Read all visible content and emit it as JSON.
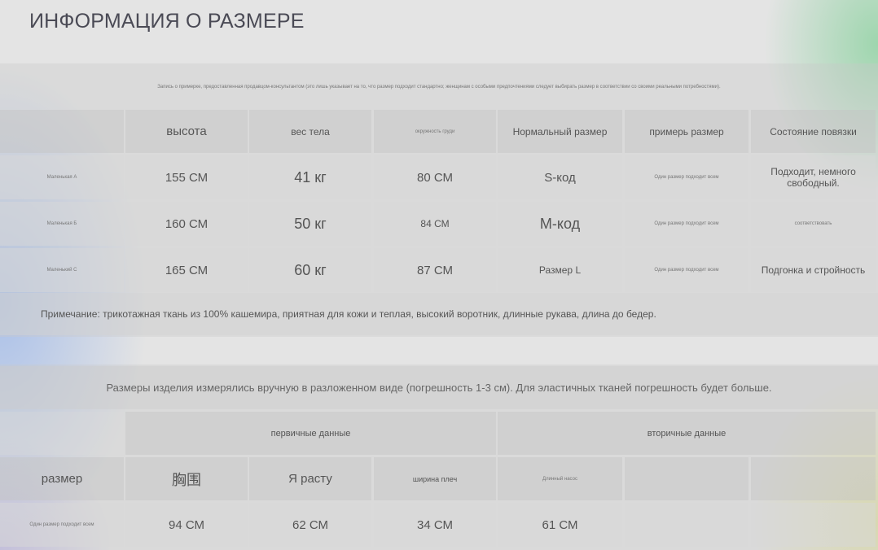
{
  "title": "ИНФОРМАЦИЯ О РАЗМЕРЕ",
  "table1": {
    "note_top": "Запись о примерке, предоставленная продавцом-консультантом (это лишь указывает на то, что размер подходит стандартно; женщинам с особыми предпочтениями следует выбирать размер в соответствии со своими реальными потребностями).",
    "headers": [
      "высота",
      "вес тела",
      "окружность груди",
      "Нормальный размер",
      "примерь размер",
      "Состояние повязки"
    ],
    "rows": [
      {
        "label": "Маленькая А",
        "cells": [
          "155 СМ",
          "41 кг",
          "80 СМ",
          "S-код",
          "Один размер подходит всем",
          "Подходит, немного свободный."
        ]
      },
      {
        "label": "Маленькая Б",
        "cells": [
          "160 СМ",
          "50 кг",
          "84 СМ",
          "М-код",
          "Один размер подходит всем",
          "соответствовать"
        ]
      },
      {
        "label": "Маленький С",
        "cells": [
          "165 СМ",
          "60 кг",
          "87 СМ",
          "Размер L",
          "Один размер подходит всем",
          "Подгонка и стройность"
        ]
      }
    ],
    "note_bottom": "Примечание: трикотажная ткань из 100% кашемира, приятная для кожи и теплая, высокий воротник, длинные рукава, длина до бедер."
  },
  "table2": {
    "notice": "Размеры изделия измерялись вручную в разложенном виде (погрешность 1-3 см). Для эластичных тканей погрешность будет больше.",
    "group_primary": "первичные данные",
    "group_secondary": "вторичные данные",
    "size_label": "размер",
    "headers": [
      "胸围",
      "Я расту",
      "ширина плеч",
      "Длинный насос",
      "",
      ""
    ],
    "row": {
      "label": "Один размер подходит всем",
      "cells": [
        "94 СМ",
        "62 СМ",
        "34 СМ",
        "61 СМ",
        "",
        ""
      ]
    }
  }
}
